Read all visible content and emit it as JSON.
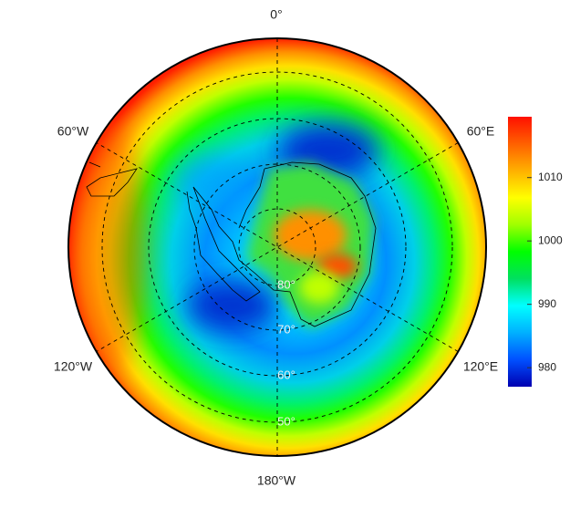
{
  "map": {
    "longitude_labels": [
      "0°",
      "60°E",
      "120°E",
      "180°W",
      "120°W",
      "60°W"
    ],
    "latitude_labels": [
      "80°",
      "70°",
      "60°",
      "50°"
    ]
  },
  "colorbar": {
    "ylim": [
      977,
      1019.6
    ],
    "yticks": [
      980,
      990,
      1000,
      1010
    ],
    "colors": [
      "#0000b0",
      "#0050ff",
      "#00b0ff",
      "#00ffff",
      "#00e060",
      "#00ff00",
      "#a0ff00",
      "#ffff00",
      "#ffb000",
      "#ff6000",
      "#ff1000"
    ]
  }
}
